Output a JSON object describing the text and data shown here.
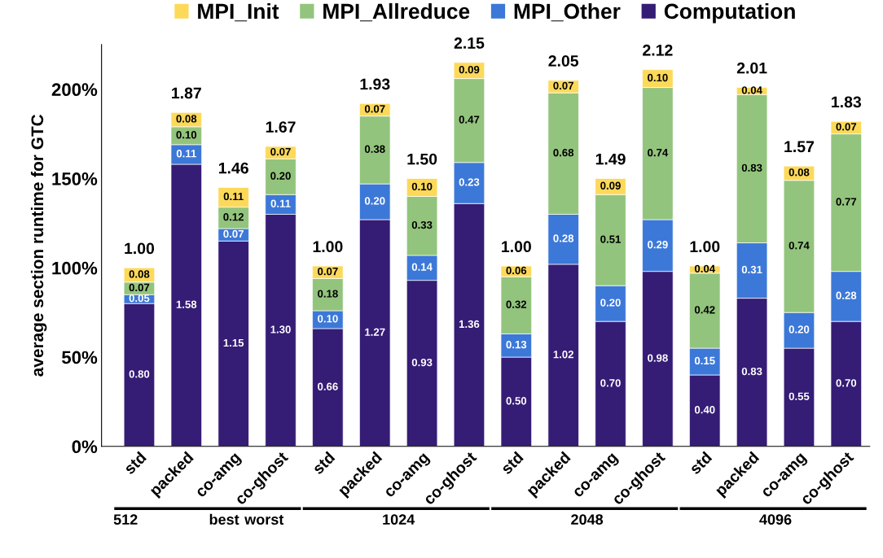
{
  "chart_data": {
    "type": "bar",
    "stacked": true,
    "ylabel": "average section runtime for GTC",
    "categories": [
      "std",
      "packed",
      "co-amg",
      "co-ghost",
      "std",
      "packed",
      "co-amg",
      "co-ghost",
      "std",
      "packed",
      "co-amg",
      "co-ghost",
      "std",
      "packed",
      "co-amg",
      "co-ghost"
    ],
    "series": [
      {
        "name": "Computation",
        "color": "#351c75",
        "values": [
          0.8,
          1.58,
          1.15,
          1.3,
          0.66,
          1.27,
          0.93,
          1.36,
          0.5,
          1.02,
          0.7,
          0.98,
          0.4,
          0.83,
          0.55,
          0.7
        ],
        "value_labels": [
          "0.80",
          "1.58",
          "1.15",
          "1.30",
          "0.66",
          "1.27",
          "0.93",
          "1.36",
          "0.50",
          "1.02",
          "0.70",
          "0.98",
          "0.40",
          "0.83",
          "0.55",
          "0.70"
        ]
      },
      {
        "name": "MPI_Other",
        "color": "#3c78d8",
        "values": [
          0.05,
          0.11,
          0.07,
          0.11,
          0.1,
          0.2,
          0.14,
          0.23,
          0.13,
          0.28,
          0.2,
          0.29,
          0.15,
          0.31,
          0.2,
          0.28
        ],
        "value_labels": [
          "0.05",
          "0.11",
          "0.07",
          "0.11",
          "0.10",
          "0.20",
          "0.14",
          "0.23",
          "0.13",
          "0.28",
          "0.20",
          "0.29",
          "0.15",
          "0.31",
          "0.20",
          "0.28"
        ]
      },
      {
        "name": "MPI_Allreduce",
        "color": "#93c47d",
        "values": [
          0.07,
          0.1,
          0.12,
          0.2,
          0.18,
          0.38,
          0.33,
          0.47,
          0.32,
          0.68,
          0.51,
          0.74,
          0.42,
          0.83,
          0.74,
          0.77
        ],
        "value_labels": [
          "0.07",
          "0.10",
          "0.12",
          "0.20",
          "0.18",
          "0.38",
          "0.33",
          "0.47",
          "0.32",
          "0.68",
          "0.51",
          "0.74",
          "0.42",
          "0.83",
          "0.74",
          "0.77"
        ]
      },
      {
        "name": "MPI_Init",
        "color": "#fdd95a",
        "values": [
          0.08,
          0.08,
          0.11,
          0.07,
          0.07,
          0.07,
          0.1,
          0.09,
          0.06,
          0.07,
          0.09,
          0.1,
          0.04,
          0.04,
          0.08,
          0.07
        ],
        "value_labels": [
          "0.08",
          "0.08",
          "0.11",
          "0.07",
          "0.07",
          "0.07",
          "0.10",
          "0.09",
          "0.06",
          "0.07",
          "0.09",
          "0.10",
          "0.04",
          "0.04",
          "0.08",
          "0.07"
        ]
      }
    ],
    "totals": [
      "1.00",
      "1.87",
      "1.46",
      "1.67",
      "1.00",
      "1.93",
      "1.50",
      "2.15",
      "1.00",
      "2.05",
      "1.49",
      "2.12",
      "1.00",
      "2.01",
      "1.57",
      "1.83"
    ],
    "ylim": [
      0,
      2.25
    ],
    "yticks": [
      {
        "value": 0,
        "label": "0%"
      },
      {
        "value": 0.5,
        "label": "50%"
      },
      {
        "value": 1.0,
        "label": "100%"
      },
      {
        "value": 1.5,
        "label": "150%"
      },
      {
        "value": 2.0,
        "label": "200%"
      }
    ],
    "legend": "top",
    "grid": false,
    "annotations": [
      "512",
      "best",
      "worst",
      "1024",
      "2048",
      "4096"
    ]
  }
}
